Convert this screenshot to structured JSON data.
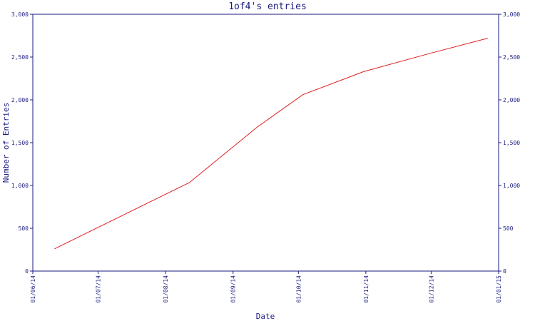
{
  "chart_data": {
    "type": "line",
    "title": "1of4's entries",
    "xlabel": "Date",
    "ylabel": "Number of Entries",
    "x_tick_labels": [
      "01/06/14",
      "01/07/14",
      "01/08/14",
      "01/09/14",
      "01/10/14",
      "01/11/14",
      "01/12/14",
      "01/01/15"
    ],
    "y_tick_labels": [
      "0",
      "500",
      "1,000",
      "1,500",
      "2,000",
      "2,500",
      "3,000"
    ],
    "y_ticks": [
      0,
      500,
      1000,
      1500,
      2000,
      2500,
      3000
    ],
    "xlim": [
      "2014-06-01",
      "2015-01-01"
    ],
    "ylim": [
      0,
      3000
    ],
    "grid": false,
    "colors": {
      "axes": "#1a1a80",
      "line": "#e02020"
    },
    "series": [
      {
        "x": [
          "2014-06-11",
          "2014-08-12",
          "2014-09-12",
          "2014-10-03",
          "2014-10-31",
          "2014-11-30",
          "2014-12-27"
        ],
        "y": [
          260,
          1035,
          1680,
          2060,
          2330,
          2540,
          2720
        ]
      }
    ]
  }
}
